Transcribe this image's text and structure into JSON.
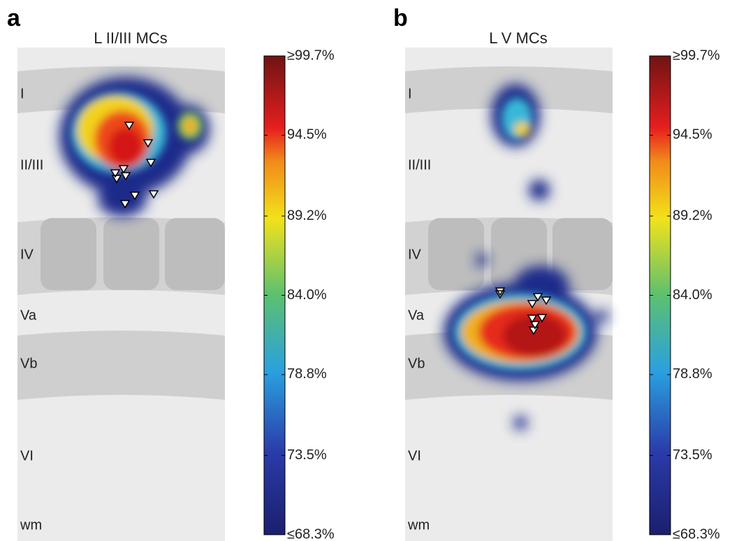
{
  "chart_data": [
    {
      "type": "heatmap",
      "panel": "a",
      "title": "L II/III MCs",
      "layers": [
        "I",
        "II/III",
        "IV",
        "Va",
        "Vb",
        "VI",
        "wm"
      ],
      "colorbar": {
        "lim": [
          68.3,
          99.7
        ],
        "ticks": [
          {
            "value": 68.3,
            "label": "≤68.3%"
          },
          {
            "value": 73.5,
            "label": "73.5%"
          },
          {
            "value": 78.8,
            "label": "78.8%"
          },
          {
            "value": 84.0,
            "label": "84.0%"
          },
          {
            "value": 89.2,
            "label": "89.2%"
          },
          {
            "value": 94.5,
            "label": "94.5%"
          },
          {
            "value": 99.7,
            "label": "≥99.7%"
          }
        ]
      }
    },
    {
      "type": "heatmap",
      "panel": "b",
      "title": "L V MCs",
      "layers": [
        "I",
        "II/III",
        "IV",
        "Va",
        "Vb",
        "VI",
        "wm"
      ],
      "colorbar": {
        "lim": [
          68.3,
          99.7
        ],
        "ticks": [
          {
            "value": 68.3,
            "label": "≤68.3%"
          },
          {
            "value": 73.5,
            "label": "73.5%"
          },
          {
            "value": 78.8,
            "label": "78.8%"
          },
          {
            "value": 84.0,
            "label": "84.0%"
          },
          {
            "value": 89.2,
            "label": "89.2%"
          },
          {
            "value": 94.5,
            "label": "94.5%"
          },
          {
            "value": 99.7,
            "label": "≥99.7%"
          }
        ]
      }
    }
  ]
}
